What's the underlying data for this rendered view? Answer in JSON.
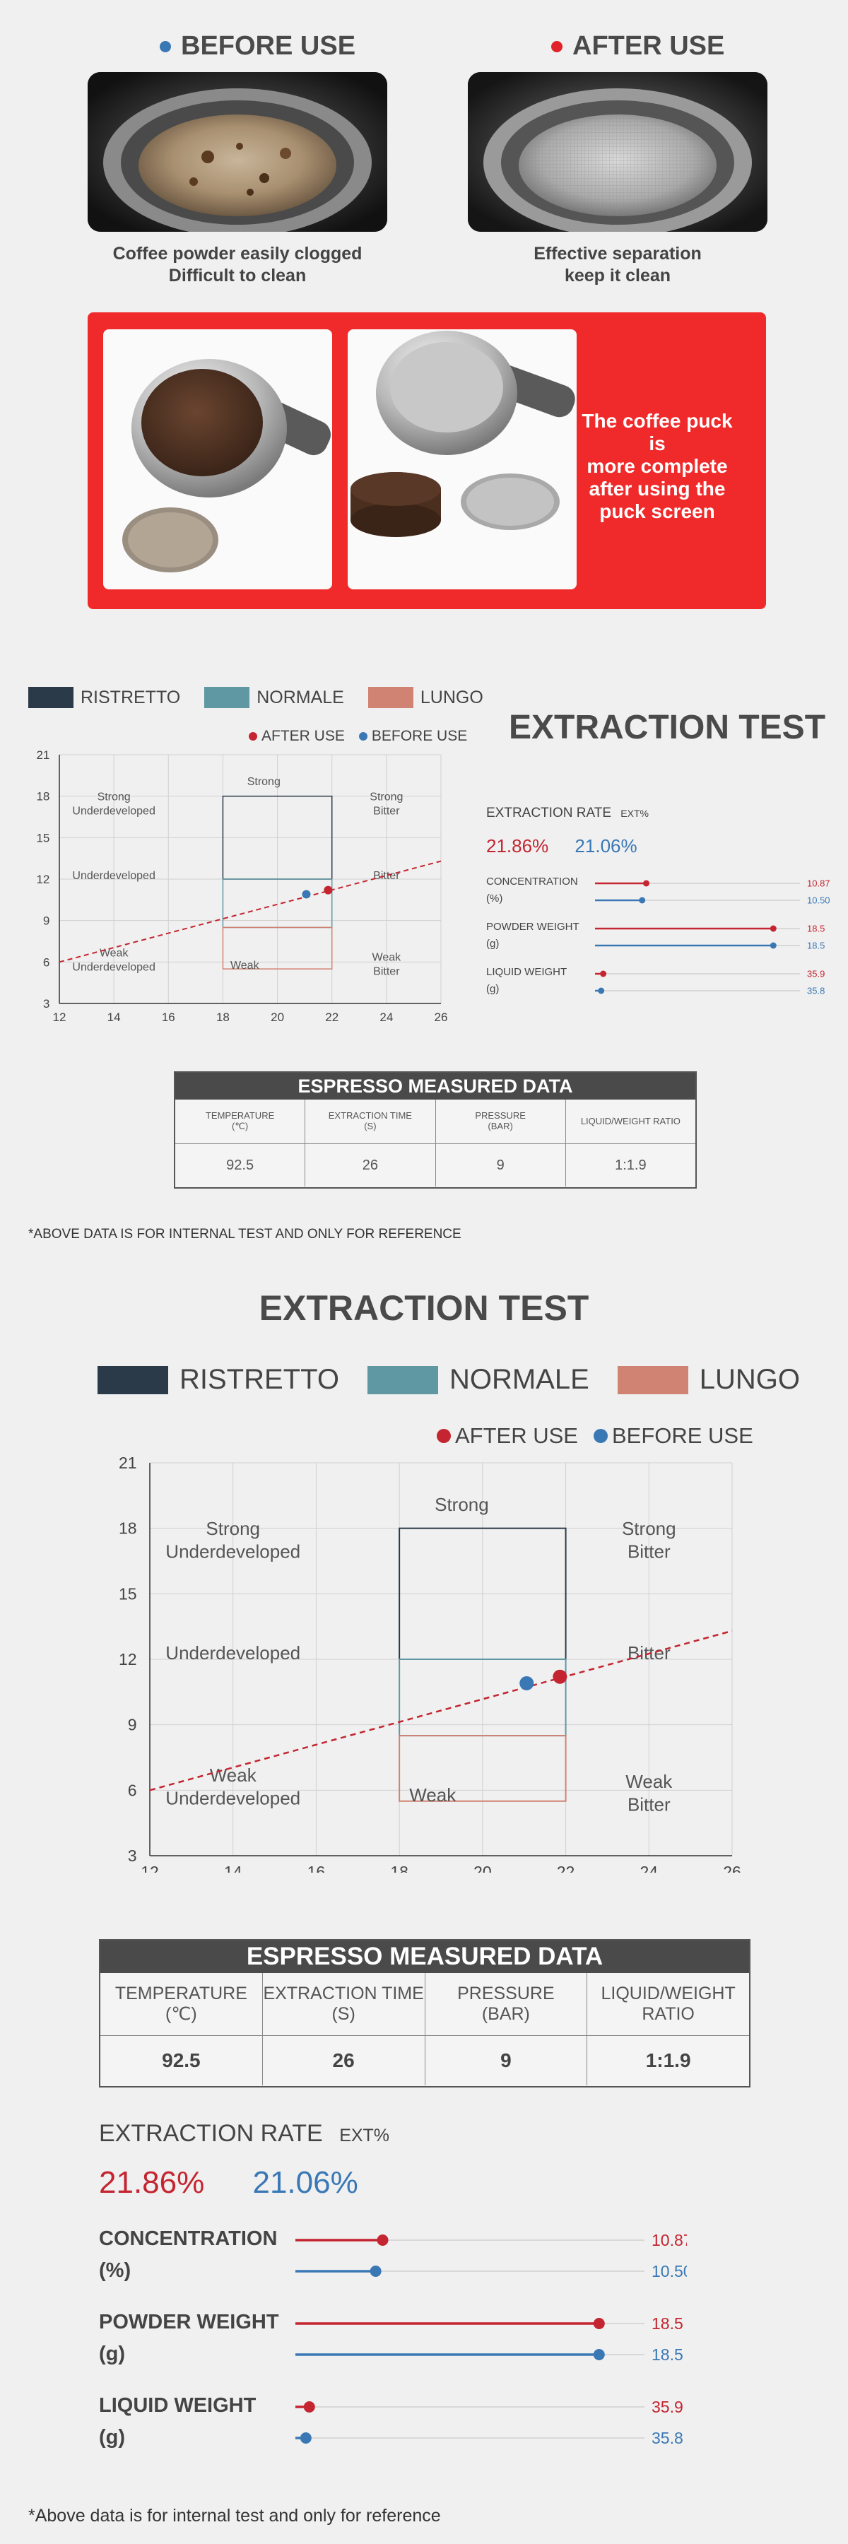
{
  "colors": {
    "red": "#c42530",
    "blue": "#3a78b5",
    "ristretto": "#2a3a48",
    "normale": "#5f97a3",
    "lungo": "#d08372",
    "banner": "#f02a2a",
    "table_header": "#4a4a4a"
  },
  "compare": {
    "before_title": "BEFORE USE",
    "after_title": "AFTER USE",
    "before_caption": "Coffee powder easily clogged\nDifficult to clean",
    "after_caption": "Effective separation\nkeep it clean"
  },
  "banner": {
    "text": "The coffee puck is\nmore complete\nafter using the\npuck screen"
  },
  "legend": {
    "ristretto": "RISTRETTO",
    "normale": "NORMALE",
    "lungo": "LUNGO",
    "after_use": "AFTER USE",
    "before_use": "BEFORE USE"
  },
  "extraction_title": "EXTRACTION TEST",
  "chart_data": {
    "type": "scatter",
    "xlim": [
      12,
      26
    ],
    "ylim": [
      3,
      21
    ],
    "x_ticks": [
      12,
      14,
      16,
      18,
      20,
      22,
      24,
      26
    ],
    "y_ticks": [
      3,
      6,
      9,
      12,
      15,
      18,
      21
    ],
    "grid": true,
    "legend_placement": "top-right",
    "points": [
      {
        "name": "AFTER USE",
        "x": 21.86,
        "y": 11.2
      },
      {
        "name": "BEFORE USE",
        "x": 21.06,
        "y": 10.9
      }
    ],
    "trend_line": {
      "x": [
        12,
        26
      ],
      "y": [
        6,
        13.3
      ]
    },
    "regions": [
      {
        "name": "RISTRETTO",
        "x": [
          18,
          22
        ],
        "y": [
          12,
          18
        ]
      },
      {
        "name": "NORMALE",
        "x": [
          18,
          22
        ],
        "y": [
          8.5,
          12
        ]
      },
      {
        "name": "LUNGO",
        "x": [
          18,
          22
        ],
        "y": [
          5.5,
          8.5
        ]
      }
    ],
    "zone_labels": [
      {
        "text": "Strong\nUnderdeveloped",
        "x": 14,
        "y": 17.7
      },
      {
        "text": "Strong",
        "x": 19.5,
        "y": 18.8
      },
      {
        "text": "Strong\nBitter",
        "x": 24,
        "y": 17.7
      },
      {
        "text": "Underdeveloped",
        "x": 14,
        "y": 12
      },
      {
        "text": "Bitter",
        "x": 24,
        "y": 12
      },
      {
        "text": "Weak\nUnderdeveloped",
        "x": 14,
        "y": 6.4
      },
      {
        "text": "Weak",
        "x": 18.8,
        "y": 5.5
      },
      {
        "text": "Weak\nBitter",
        "x": 24,
        "y": 6.1
      }
    ]
  },
  "measured": {
    "title": "ESPRESSO MEASURED DATA",
    "headers_small": [
      "TEMPERATURE\n(℃)",
      "EXTRACTION TIME\n(S)",
      "PRESSURE\n(BAR)",
      "LIQUID/WEIGHT RATIO"
    ],
    "headers_large": [
      "TEMPERATURE\n(℃)",
      "EXTRACTION TIME\n(S)",
      "PRESSURE\n(BAR)",
      "LIQUID/WEIGHT\nRATIO"
    ],
    "values": [
      "92.5",
      "26",
      "9",
      "1:1.9"
    ]
  },
  "note_small": "*ABOVE DATA IS FOR INTERNAL TEST AND ONLY FOR REFERENCE",
  "note_large": "*Above data is for internal test and only for reference",
  "rate": {
    "label": "EXTRACTION RATE",
    "unit": "EXT%",
    "after": "21.86%",
    "before": "21.06%"
  },
  "metrics": [
    {
      "name": "CONCENTRATION\n(%)",
      "after_label": "10.87",
      "before_label": "10.50",
      "after_fraction": 0.25,
      "before_fraction": 0.23
    },
    {
      "name": "POWDER WEIGHT\n(g)",
      "after_label": "18.5",
      "before_label": "18.5",
      "after_fraction": 0.87,
      "before_fraction": 0.87
    },
    {
      "name": "LIQUID WEIGHT\n(g)",
      "after_label": "35.9",
      "before_label": "35.8",
      "after_fraction": 0.04,
      "before_fraction": 0.03
    }
  ]
}
